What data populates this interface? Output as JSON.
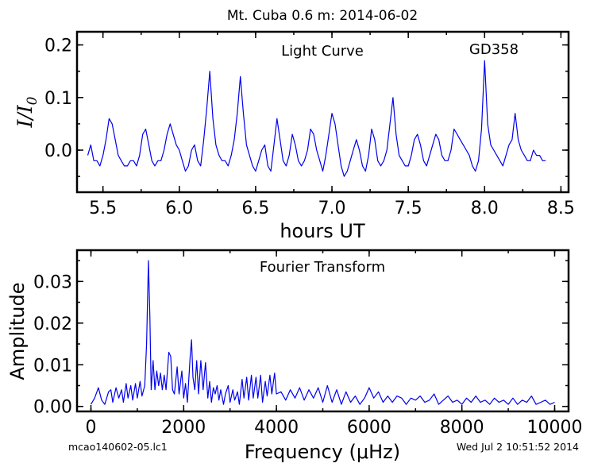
{
  "figure": {
    "suptitle": "Mt. Cuba 0.6 m:  2014-06-02",
    "footer_left": "mcao140602-05.lc1",
    "footer_right": "Wed Jul  2 10:51:52 2014"
  },
  "chart_data": [
    {
      "type": "line",
      "title": "Light Curve",
      "annotation": "GD358",
      "xlabel": "hours UT",
      "ylabel": "I/I0",
      "xlim": [
        5.33,
        8.55
      ],
      "ylim": [
        -0.08,
        0.225
      ],
      "xticks": [
        5.5,
        6.0,
        6.5,
        7.0,
        7.5,
        8.0,
        8.5
      ],
      "xticklabels": [
        "5.5",
        "6.0",
        "6.5",
        "7.0",
        "7.5",
        "8.0",
        "8.5"
      ],
      "yticks": [
        0.0,
        0.1,
        0.2
      ],
      "yticklabels": [
        "0.0",
        "0.1",
        "0.2"
      ],
      "color": "#0000ee",
      "series": [
        {
          "x": [
            5.4,
            5.42,
            5.44,
            5.46,
            5.48,
            5.5,
            5.52,
            5.54,
            5.56,
            5.58,
            5.6,
            5.62,
            5.64,
            5.66,
            5.68,
            5.7,
            5.72,
            5.74,
            5.76,
            5.78,
            5.8,
            5.82,
            5.84,
            5.86,
            5.88,
            5.9,
            5.92,
            5.94,
            5.96,
            5.98,
            6.0,
            6.02,
            6.04,
            6.06,
            6.08,
            6.1,
            6.12,
            6.14,
            6.16,
            6.18,
            6.2,
            6.22,
            6.24,
            6.26,
            6.28,
            6.3,
            6.32,
            6.34,
            6.36,
            6.38,
            6.4,
            6.42,
            6.44,
            6.46,
            6.48,
            6.5,
            6.52,
            6.54,
            6.56,
            6.58,
            6.6,
            6.62,
            6.64,
            6.66,
            6.68,
            6.7,
            6.72,
            6.74,
            6.76,
            6.78,
            6.8,
            6.82,
            6.84,
            6.86,
            6.88,
            6.9,
            6.92,
            6.94,
            6.96,
            6.98,
            7.0,
            7.02,
            7.04,
            7.06,
            7.08,
            7.1,
            7.12,
            7.14,
            7.16,
            7.18,
            7.2,
            7.22,
            7.24,
            7.26,
            7.28,
            7.3,
            7.32,
            7.34,
            7.36,
            7.38,
            7.4,
            7.42,
            7.44,
            7.46,
            7.48,
            7.5,
            7.52,
            7.54,
            7.56,
            7.58,
            7.6,
            7.62,
            7.64,
            7.66,
            7.68,
            7.7,
            7.72,
            7.74,
            7.76,
            7.78,
            7.8,
            7.82,
            7.84,
            7.86,
            7.88,
            7.9,
            7.92,
            7.94,
            7.96,
            7.98,
            8.0,
            8.02,
            8.04,
            8.06,
            8.08,
            8.1,
            8.12,
            8.14,
            8.16,
            8.18,
            8.2,
            8.22,
            8.24,
            8.26,
            8.28,
            8.3,
            8.32,
            8.34,
            8.36,
            8.38,
            8.4
          ],
          "y": [
            -0.01,
            0.01,
            -0.02,
            -0.02,
            -0.03,
            -0.01,
            0.02,
            0.06,
            0.05,
            0.02,
            -0.01,
            -0.02,
            -0.03,
            -0.03,
            -0.02,
            -0.02,
            -0.03,
            -0.01,
            0.03,
            0.04,
            0.01,
            -0.02,
            -0.03,
            -0.02,
            -0.02,
            0.0,
            0.03,
            0.05,
            0.03,
            0.01,
            0.0,
            -0.02,
            -0.04,
            -0.03,
            0.0,
            0.01,
            -0.02,
            -0.03,
            0.02,
            0.08,
            0.15,
            0.06,
            0.01,
            -0.01,
            -0.02,
            -0.02,
            -0.03,
            -0.01,
            0.02,
            0.07,
            0.14,
            0.07,
            0.01,
            -0.01,
            -0.03,
            -0.04,
            -0.02,
            0.0,
            0.01,
            -0.03,
            -0.04,
            0.01,
            0.06,
            0.02,
            -0.02,
            -0.03,
            -0.01,
            0.03,
            0.01,
            -0.02,
            -0.03,
            -0.02,
            0.0,
            0.04,
            0.03,
            0.0,
            -0.02,
            -0.04,
            -0.01,
            0.03,
            0.07,
            0.05,
            0.01,
            -0.03,
            -0.05,
            -0.04,
            -0.02,
            0.0,
            0.02,
            0.0,
            -0.03,
            -0.04,
            -0.01,
            0.04,
            0.02,
            -0.02,
            -0.03,
            -0.02,
            0.0,
            0.05,
            0.1,
            0.03,
            -0.01,
            -0.02,
            -0.03,
            -0.03,
            -0.01,
            0.02,
            0.03,
            0.01,
            -0.02,
            -0.03,
            -0.01,
            0.01,
            0.03,
            0.02,
            -0.01,
            -0.02,
            -0.02,
            0.0,
            0.04,
            0.03,
            0.02,
            0.01,
            0.0,
            -0.01,
            -0.03,
            -0.04,
            -0.02,
            0.04,
            0.17,
            0.05,
            0.01,
            0.0,
            -0.01,
            -0.02,
            -0.03,
            -0.01,
            0.01,
            0.02,
            0.07,
            0.02,
            0.0,
            -0.01,
            -0.02,
            -0.02,
            0.0,
            -0.01,
            -0.01,
            -0.02,
            -0.02
          ]
        }
      ]
    },
    {
      "type": "line",
      "title": "Fourier Transform",
      "xlabel": "Frequency (μHz)",
      "ylabel": "Amplitude",
      "xlim": [
        -300,
        10300
      ],
      "ylim": [
        -0.0012,
        0.0375
      ],
      "xticks": [
        0,
        2000,
        4000,
        6000,
        8000,
        10000
      ],
      "xticklabels": [
        "0",
        "2000",
        "4000",
        "6000",
        "8000",
        "10000"
      ],
      "yticks": [
        0.0,
        0.01,
        0.02,
        0.03
      ],
      "yticklabels": [
        "0.00",
        "0.01",
        "0.02",
        "0.03"
      ],
      "color": "#0000ee",
      "series": [
        {
          "x": [
            0,
            80,
            160,
            230,
            300,
            380,
            430,
            470,
            540,
            600,
            660,
            700,
            760,
            800,
            860,
            900,
            960,
            1000,
            1060,
            1100,
            1160,
            1200,
            1240,
            1270,
            1300,
            1340,
            1380,
            1420,
            1460,
            1500,
            1540,
            1580,
            1620,
            1680,
            1720,
            1760,
            1800,
            1860,
            1900,
            1960,
            2000,
            2040,
            2080,
            2140,
            2170,
            2200,
            2240,
            2280,
            2320,
            2370,
            2420,
            2470,
            2520,
            2560,
            2600,
            2640,
            2680,
            2720,
            2760,
            2800,
            2860,
            2900,
            2960,
            3000,
            3060,
            3100,
            3160,
            3200,
            3260,
            3300,
            3360,
            3400,
            3460,
            3500,
            3560,
            3600,
            3660,
            3700,
            3760,
            3800,
            3860,
            3900,
            3960,
            4000,
            4100,
            4200,
            4300,
            4400,
            4500,
            4600,
            4700,
            4800,
            4900,
            5000,
            5100,
            5200,
            5300,
            5400,
            5500,
            5600,
            5700,
            5800,
            5900,
            6000,
            6100,
            6200,
            6300,
            6400,
            6500,
            6600,
            6700,
            6800,
            6900,
            7000,
            7100,
            7200,
            7300,
            7400,
            7500,
            7600,
            7700,
            7800,
            7900,
            8000,
            8100,
            8200,
            8300,
            8400,
            8500,
            8600,
            8700,
            8800,
            8900,
            9000,
            9100,
            9200,
            9300,
            9400,
            9500,
            9600,
            9700,
            9800,
            9900,
            10000
          ],
          "y": [
            0.0005,
            0.002,
            0.0045,
            0.0015,
            0.0005,
            0.0035,
            0.004,
            0.001,
            0.0045,
            0.002,
            0.004,
            0.001,
            0.0055,
            0.002,
            0.005,
            0.0015,
            0.0055,
            0.002,
            0.006,
            0.0025,
            0.005,
            0.015,
            0.035,
            0.022,
            0.004,
            0.011,
            0.004,
            0.0085,
            0.005,
            0.008,
            0.004,
            0.0075,
            0.004,
            0.013,
            0.012,
            0.004,
            0.003,
            0.0095,
            0.003,
            0.0085,
            0.002,
            0.0055,
            0.001,
            0.012,
            0.016,
            0.007,
            0.004,
            0.011,
            0.003,
            0.011,
            0.004,
            0.0105,
            0.002,
            0.006,
            0.001,
            0.0045,
            0.003,
            0.005,
            0.0015,
            0.004,
            0.0005,
            0.003,
            0.005,
            0.001,
            0.004,
            0.0015,
            0.0035,
            0.0005,
            0.0065,
            0.002,
            0.007,
            0.0015,
            0.0075,
            0.002,
            0.007,
            0.002,
            0.0075,
            0.001,
            0.006,
            0.0025,
            0.0075,
            0.003,
            0.008,
            0.003,
            0.0035,
            0.0015,
            0.004,
            0.002,
            0.0045,
            0.0015,
            0.004,
            0.002,
            0.0045,
            0.001,
            0.005,
            0.001,
            0.004,
            0.0005,
            0.0035,
            0.001,
            0.0025,
            0.0005,
            0.002,
            0.0045,
            0.002,
            0.0035,
            0.001,
            0.0025,
            0.001,
            0.0025,
            0.002,
            0.0005,
            0.002,
            0.0015,
            0.0025,
            0.001,
            0.0015,
            0.003,
            0.0005,
            0.0015,
            0.0025,
            0.001,
            0.0015,
            0.0005,
            0.002,
            0.001,
            0.0025,
            0.001,
            0.0015,
            0.0005,
            0.002,
            0.001,
            0.0015,
            0.0005,
            0.002,
            0.0005,
            0.0015,
            0.001,
            0.0025,
            0.0005,
            0.001,
            0.0015,
            0.0005,
            0.001
          ]
        }
      ]
    }
  ]
}
